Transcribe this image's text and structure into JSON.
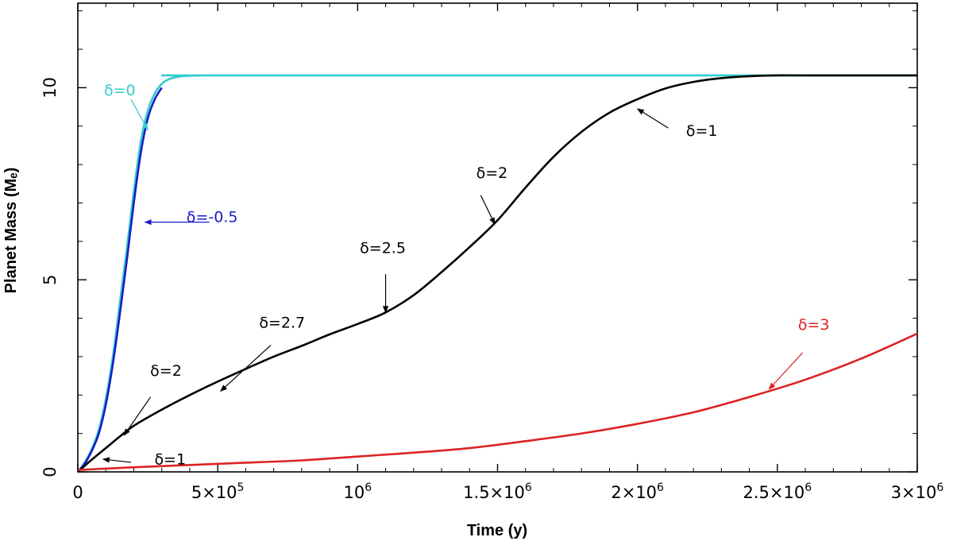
{
  "chart_data": {
    "type": "line",
    "title": "",
    "xlabel": "Time (y)",
    "ylabel": "Planet Mass (Mₑ)",
    "xlim": [
      0,
      3000000
    ],
    "ylim": [
      0,
      12.2
    ],
    "grid": false,
    "x_ticks": [
      {
        "value": 0,
        "label": "0",
        "sup": ""
      },
      {
        "value": 500000,
        "label": "5×10",
        "sup": "5"
      },
      {
        "value": 1000000,
        "label": "10",
        "sup": "6"
      },
      {
        "value": 1500000,
        "label": "1.5×10",
        "sup": "6"
      },
      {
        "value": 2000000,
        "label": "2×10",
        "sup": "6"
      },
      {
        "value": 2500000,
        "label": "2.5×10",
        "sup": "6"
      },
      {
        "value": 3000000,
        "label": "3×10",
        "sup": "6"
      }
    ],
    "y_ticks": [
      {
        "value": 0,
        "label": "0"
      },
      {
        "value": 5,
        "label": "5"
      },
      {
        "value": 10,
        "label": "10"
      }
    ],
    "series": [
      {
        "color": "#33cccc",
        "x": [
          0,
          25000,
          50000,
          75000,
          100000,
          125000,
          150000,
          175000,
          200000,
          225000,
          250000,
          275000,
          300000,
          325000,
          350000,
          375000,
          400000,
          450000,
          500000,
          3000000
        ],
        "y": [
          0.0,
          0.25,
          0.6,
          1.1,
          1.9,
          3.0,
          4.4,
          5.8,
          7.3,
          8.6,
          9.4,
          9.85,
          10.1,
          10.22,
          10.27,
          10.3,
          10.31,
          10.32,
          10.32,
          10.32
        ]
      },
      {
        "color": "#1a1ac8",
        "x": [
          0,
          25000,
          50000,
          75000,
          100000,
          125000,
          150000,
          175000,
          200000,
          225000,
          250000,
          275000,
          300000
        ],
        "y": [
          0.0,
          0.22,
          0.55,
          1.0,
          1.75,
          2.8,
          4.1,
          5.5,
          7.0,
          8.3,
          9.2,
          9.7,
          10.0
        ]
      },
      {
        "color": "#000000",
        "x": [
          0,
          50000,
          100000,
          150000,
          200000,
          300000,
          400000,
          500000,
          600000,
          700000,
          800000,
          900000,
          1000000,
          1100000,
          1200000,
          1300000,
          1400000,
          1500000,
          1600000,
          1700000,
          1800000,
          1900000,
          2000000,
          2100000,
          2200000,
          2300000,
          2400000,
          2500000,
          2600000,
          3000000
        ],
        "y": [
          0.0,
          0.32,
          0.62,
          0.92,
          1.2,
          1.62,
          2.0,
          2.35,
          2.68,
          3.0,
          3.28,
          3.58,
          3.85,
          4.15,
          4.6,
          5.2,
          5.85,
          6.55,
          7.4,
          8.2,
          8.85,
          9.35,
          9.7,
          9.98,
          10.15,
          10.25,
          10.3,
          10.32,
          10.32,
          10.32
        ]
      },
      {
        "color": "#dd2222",
        "x": [
          0,
          200000,
          400000,
          600000,
          800000,
          1000000,
          1200000,
          1400000,
          1600000,
          1800000,
          2000000,
          2200000,
          2400000,
          2600000,
          2800000,
          3000000
        ],
        "y": [
          0.05,
          0.12,
          0.18,
          0.24,
          0.3,
          0.4,
          0.5,
          0.62,
          0.8,
          1.0,
          1.25,
          1.55,
          1.95,
          2.4,
          2.95,
          3.6
        ]
      }
    ],
    "annotations": [
      {
        "text": "δ=0",
        "color": "#33cccc",
        "text_x": 150000,
        "text_y": 9.8,
        "arrow_from": [
          190000,
          9.7
        ],
        "arrow_to": [
          250000,
          8.9
        ]
      },
      {
        "text": "δ=-0.5",
        "color": "#1a1ac8",
        "text_x": 480000,
        "text_y": 6.5,
        "arrow_from": [
          470000,
          6.5
        ],
        "arrow_to": [
          240000,
          6.5
        ]
      },
      {
        "text": "δ=1",
        "color": "#000000",
        "text_x": 2230000,
        "text_y": 8.75,
        "arrow_from": [
          2110000,
          8.95
        ],
        "arrow_to": [
          2000000,
          9.45
        ]
      },
      {
        "text": "δ=2",
        "color": "#000000",
        "text_x": 1480000,
        "text_y": 7.65,
        "arrow_from": [
          1440000,
          7.2
        ],
        "arrow_to": [
          1490000,
          6.45
        ]
      },
      {
        "text": "δ=2.5",
        "color": "#000000",
        "text_x": 1090000,
        "text_y": 5.7,
        "arrow_from": [
          1100000,
          5.15
        ],
        "arrow_to": [
          1100000,
          4.15
        ]
      },
      {
        "text": "δ=2.7",
        "color": "#000000",
        "text_x": 730000,
        "text_y": 3.75,
        "arrow_from": [
          690000,
          3.3
        ],
        "arrow_to": [
          510000,
          2.1
        ]
      },
      {
        "text": "δ=2",
        "color": "#000000",
        "text_x": 315000,
        "text_y": 2.5,
        "arrow_from": [
          260000,
          1.95
        ],
        "arrow_to": [
          165000,
          0.95
        ]
      },
      {
        "text": "δ=1",
        "color": "#000000",
        "text_x": 330000,
        "text_y": 0.2,
        "arrow_from": [
          190000,
          0.25
        ],
        "arrow_to": [
          90000,
          0.33
        ]
      },
      {
        "text": "δ=3",
        "color": "#dd2222",
        "text_x": 2630000,
        "text_y": 3.7,
        "arrow_from": [
          2590000,
          3.1
        ],
        "arrow_to": [
          2470000,
          2.15
        ]
      }
    ]
  }
}
